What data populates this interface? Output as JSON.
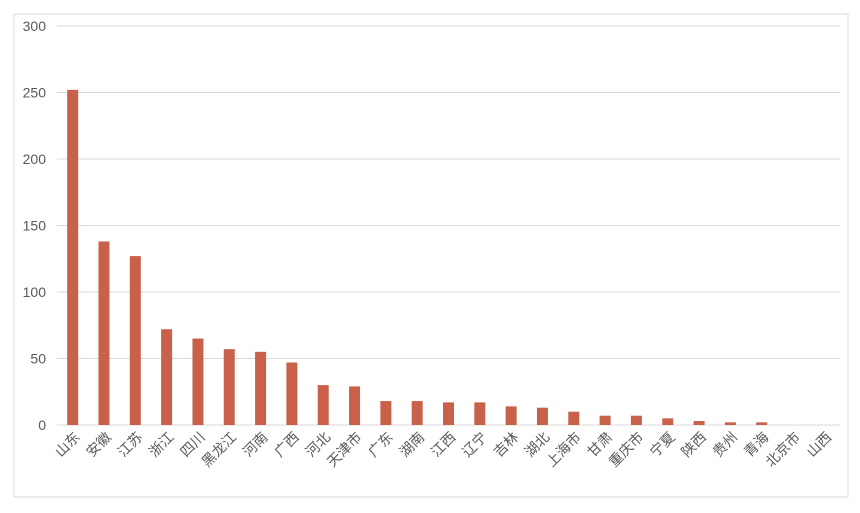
{
  "chart_data": {
    "type": "bar",
    "categories": [
      "山东",
      "安徽",
      "江苏",
      "浙江",
      "四川",
      "黑龙江",
      "河南",
      "广西",
      "河北",
      "天津市",
      "广东",
      "湖南",
      "江西",
      "辽宁",
      "吉林",
      "湖北",
      "上海市",
      "甘肃",
      "重庆市",
      "宁夏",
      "陕西",
      "贵州",
      "青海",
      "北京市",
      "山西"
    ],
    "values": [
      252,
      138,
      127,
      72,
      65,
      57,
      55,
      47,
      30,
      29,
      18,
      18,
      17,
      17,
      14,
      13,
      10,
      7,
      7,
      5,
      3,
      2,
      2,
      0,
      0
    ],
    "color": "#c9604a",
    "ylim": [
      0,
      300
    ],
    "yticks": [
      0,
      50,
      100,
      150,
      200,
      250,
      300
    ],
    "grid": true
  }
}
